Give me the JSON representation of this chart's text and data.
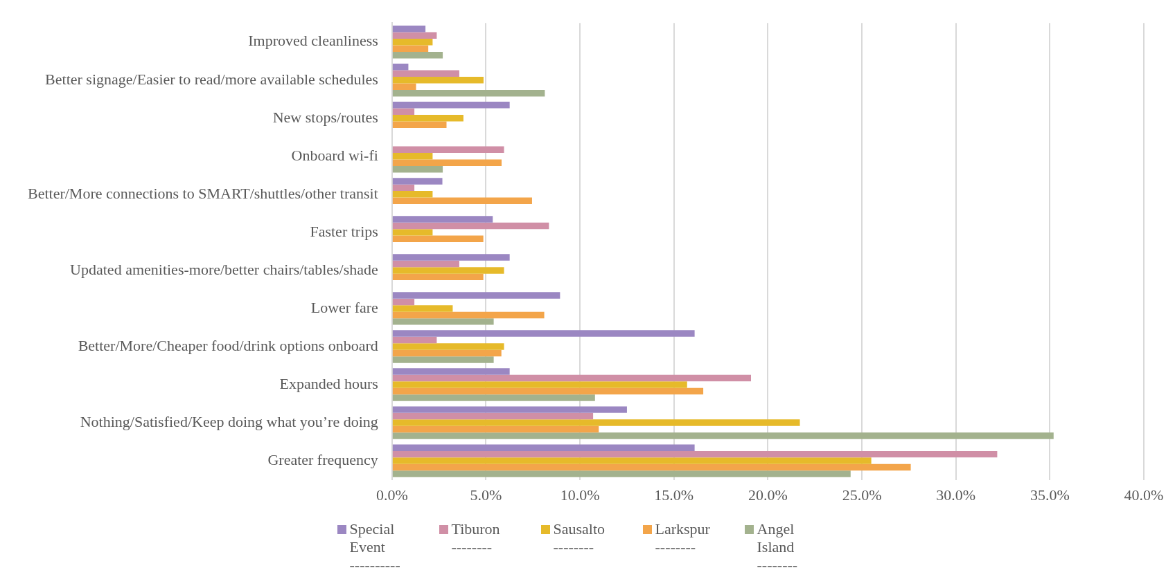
{
  "chart_data": {
    "type": "bar",
    "orientation": "horizontal",
    "categories": [
      "Improved cleanliness",
      "Better signage/Easier to read/more available schedules",
      "New stops/routes",
      "Onboard wi-fi",
      "Better/More connections to SMART/shuttles/other transit",
      "Faster trips",
      "Updated amenities-more/better chairs/tables/shade",
      "Lower fare",
      "Better/More/Cheaper food/drink options onboard",
      "Expanded hours",
      "Nothing/Satisfied/Keep doing what you’re doing",
      "Greater frequency"
    ],
    "series": [
      {
        "name": "Special Event ----------",
        "color": "#9b87c2",
        "values": [
          1.78,
          0.87,
          6.26,
          null,
          2.68,
          5.36,
          6.26,
          8.94,
          16.1,
          6.26,
          12.5,
          16.1
        ]
      },
      {
        "name": "Tiburon --------",
        "color": "#d08fa6",
        "values": [
          2.38,
          3.58,
          1.19,
          5.96,
          1.19,
          8.35,
          3.58,
          1.19,
          2.38,
          19.1,
          10.7,
          32.2
        ]
      },
      {
        "name": "Sausalto --------",
        "color": "#e6ba2a",
        "values": [
          2.16,
          4.87,
          3.8,
          2.16,
          2.16,
          2.16,
          5.96,
          3.23,
          5.96,
          15.7,
          21.7,
          25.5
        ]
      },
      {
        "name": "Larkspur --------",
        "color": "#f3a54a",
        "values": [
          1.93,
          1.28,
          2.9,
          5.83,
          7.45,
          4.86,
          4.86,
          8.1,
          5.82,
          16.56,
          11.0,
          27.6
        ]
      },
      {
        "name": "Angel Island --------",
        "color": "#a3b28e",
        "values": [
          2.7,
          8.13,
          null,
          2.7,
          null,
          null,
          null,
          5.41,
          5.41,
          10.8,
          35.2,
          24.4
        ]
      }
    ],
    "xlim": [
      0,
      40
    ],
    "xticks": [
      {
        "value": 0,
        "label": "0.0%"
      },
      {
        "value": 5,
        "label": "5.0%"
      },
      {
        "value": 10,
        "label": "10.0%"
      },
      {
        "value": 15,
        "label": "15.0%"
      },
      {
        "value": 20,
        "label": "20.0%"
      },
      {
        "value": 25,
        "label": "25.0%"
      },
      {
        "value": 30,
        "label": "30.0%"
      },
      {
        "value": 35,
        "label": "35.0%"
      },
      {
        "value": 40,
        "label": "40.0%"
      }
    ],
    "grid": "x",
    "legend": "bottom"
  }
}
